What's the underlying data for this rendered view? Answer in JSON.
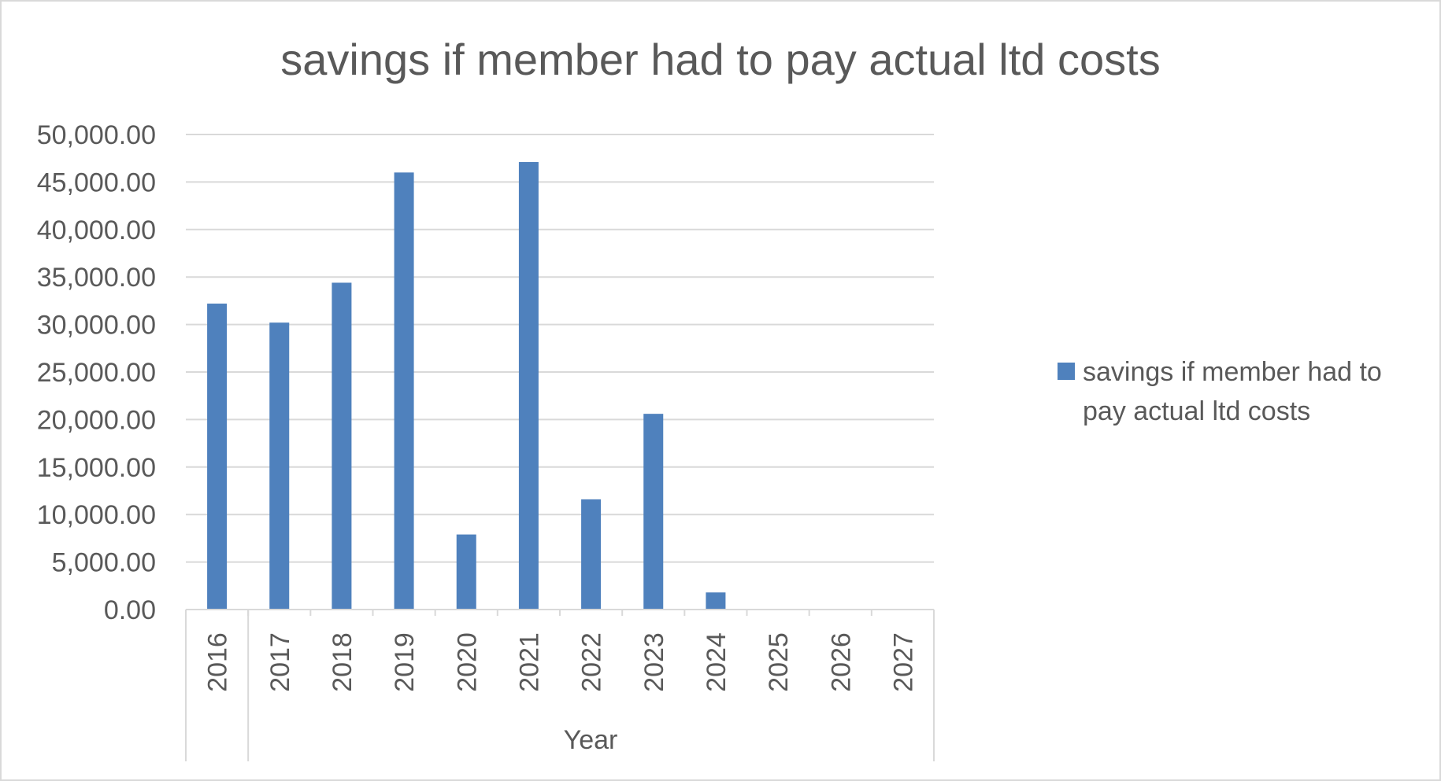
{
  "chart_data": {
    "type": "bar",
    "title": "savings if member had to pay actual  ltd costs",
    "xlabel": "Year",
    "ylabel": "",
    "categories": [
      "2016",
      "2017",
      "2018",
      "2019",
      "2020",
      "2021",
      "2022",
      "2023",
      "2024",
      "2025",
      "2026",
      "2027"
    ],
    "series": [
      {
        "name": "savings if member had to pay actual  ltd costs",
        "values": [
          32200,
          30200,
          34400,
          46000,
          7900,
          47100,
          11600,
          20600,
          1800,
          0,
          0,
          0
        ],
        "color": "#4F81BD"
      }
    ],
    "ylim": [
      0,
      50000
    ],
    "ytick_labels": [
      "0.00",
      "5,000.00",
      "10,000.00",
      "15,000.00",
      "20,000.00",
      "25,000.00",
      "30,000.00",
      "35,000.00",
      "40,000.00",
      "45,000.00",
      "50,000.00"
    ],
    "legend_lines": [
      "savings if member had to",
      "pay actual  ltd costs"
    ],
    "legend_position": "right",
    "grid": true,
    "colors": {
      "gridline": "#D9D9D9",
      "axis": "#D9D9D9",
      "border": "#D9D9D9",
      "text": "#595959"
    }
  }
}
